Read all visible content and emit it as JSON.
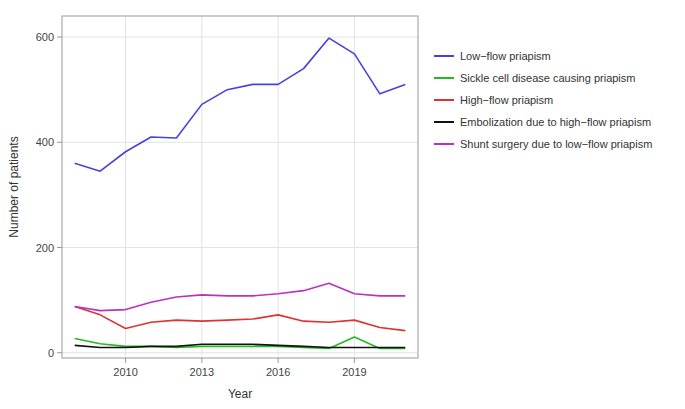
{
  "chart_data": {
    "type": "line",
    "x_label": "Year",
    "y_label": "Number of patients",
    "x": [
      2008,
      2009,
      2010,
      2011,
      2012,
      2013,
      2014,
      2015,
      2016,
      2017,
      2018,
      2019,
      2020,
      2021
    ],
    "series": [
      {
        "name": "Low−flow priapism",
        "color": "#4444dd",
        "values": [
          360,
          345,
          382,
          410,
          408,
          472,
          500,
          510,
          510,
          540,
          598,
          568,
          492,
          510
        ]
      },
      {
        "name": "Sickle cell disease causing priapism",
        "color": "#22bb22",
        "values": [
          27,
          17,
          12,
          12,
          10,
          12,
          12,
          12,
          12,
          10,
          8,
          30,
          8,
          8
        ]
      },
      {
        "name": "High−flow priapism",
        "color": "#dd3333",
        "values": [
          88,
          72,
          46,
          58,
          62,
          60,
          62,
          64,
          72,
          60,
          58,
          62,
          48,
          42
        ]
      },
      {
        "name": "Embolization due to high−flow priapism",
        "color": "#111111",
        "values": [
          14,
          10,
          10,
          12,
          12,
          16,
          16,
          16,
          14,
          12,
          10,
          10,
          10,
          10
        ]
      },
      {
        "name": "Shunt surgery due to low−flow priapism",
        "color": "#bb33bb",
        "values": [
          88,
          80,
          82,
          96,
          106,
          110,
          108,
          108,
          112,
          118,
          132,
          112,
          108,
          108
        ]
      }
    ],
    "xlim": [
      2007.5,
      2021.5
    ],
    "xticks": [
      2010,
      2013,
      2016,
      2019
    ],
    "ylim": [
      -10,
      640
    ],
    "yticks": [
      0,
      200,
      400,
      600
    ],
    "grid": true,
    "legend": "right"
  }
}
